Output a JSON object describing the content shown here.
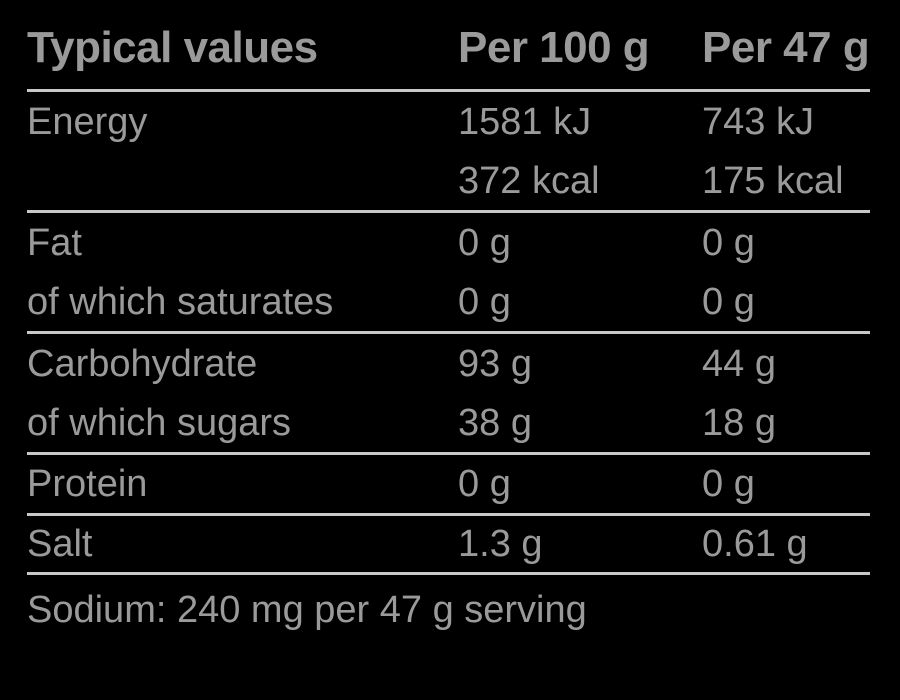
{
  "page": {
    "background_color": "#000000",
    "text_color": "#9a9a9a",
    "rule_color": "#c8c8c8"
  },
  "nutrition_table": {
    "header": {
      "label": "Typical values",
      "per_100g": "Per 100 g",
      "per_47g": "Per 47 g"
    },
    "rows": [
      {
        "label": "Energy",
        "per100": "1581 kJ",
        "per47": "743 kJ"
      },
      {
        "label": "",
        "per100": "372 kcal",
        "per47": "175 kcal"
      },
      {
        "label": "Fat",
        "per100": "0 g",
        "per47": "0 g"
      },
      {
        "label": "of which saturates",
        "per100": "0 g",
        "per47": "0 g"
      },
      {
        "label": "Carbohydrate",
        "per100": "93 g",
        "per47": "44 g"
      },
      {
        "label": "of which sugars",
        "per100": "38 g",
        "per47": "18 g"
      },
      {
        "label": "Protein",
        "per100": "0 g",
        "per47": "0 g"
      },
      {
        "label": "Salt",
        "per100": "1.3 g",
        "per47": "0.61 g"
      }
    ],
    "footnote": "Sodium: 240 mg per 47 g serving"
  }
}
